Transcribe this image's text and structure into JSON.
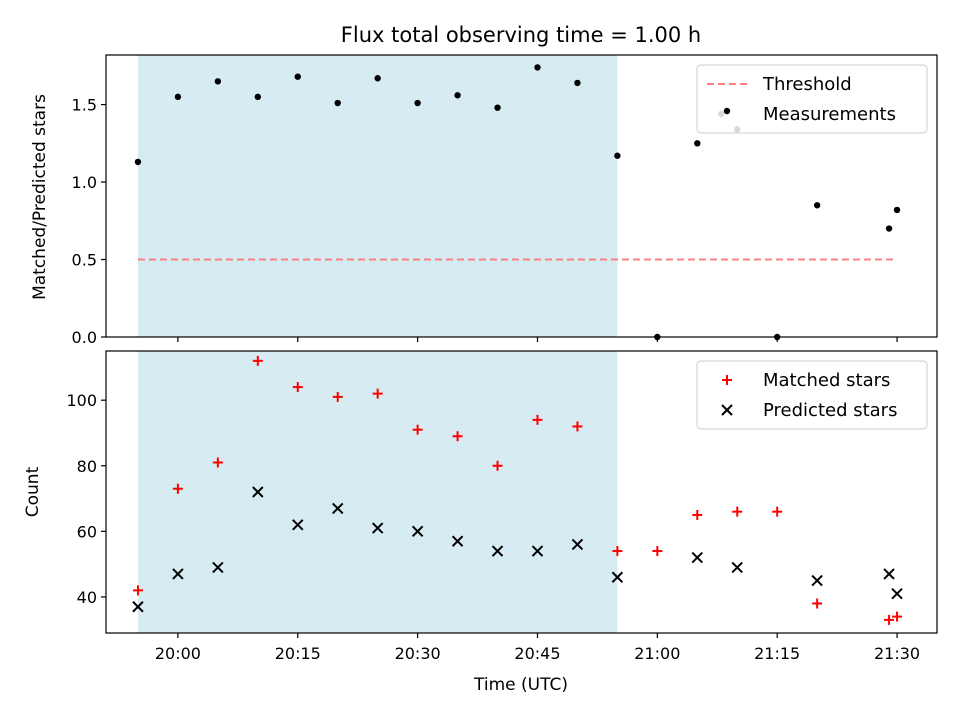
{
  "chart_data": [
    {
      "type": "scatter",
      "title": "Flux total observing time = 1.00 h",
      "ylabel": "Matched/Predicted stars",
      "xlabel": "",
      "ylim": [
        0,
        1.82
      ],
      "xlim": [
        "19:51",
        "21:35"
      ],
      "yticks": [
        0.0,
        0.5,
        1.0,
        1.5
      ],
      "ytick_labels": [
        "0.0",
        "0.5",
        "1.0",
        "1.5"
      ],
      "legend_position": "top-right",
      "highlight_span": {
        "start": "19:55",
        "end": "20:55",
        "color": "#add8e6"
      },
      "series": [
        {
          "name": "Threshold",
          "style": "dashed-line",
          "color": "#ff8080",
          "x": [
            "19:55",
            "21:30"
          ],
          "y": [
            0.5,
            0.5
          ]
        },
        {
          "name": "Measurements",
          "style": "dot",
          "color": "#000000",
          "x": [
            "19:55",
            "20:00",
            "20:05",
            "20:10",
            "20:15",
            "20:20",
            "20:25",
            "20:30",
            "20:35",
            "20:40",
            "20:45",
            "20:50",
            "20:55",
            "21:00",
            "21:05",
            "21:08",
            "21:10",
            "21:15",
            "21:20",
            "21:29",
            "21:30"
          ],
          "y": [
            1.13,
            1.55,
            1.65,
            1.55,
            1.68,
            1.51,
            1.67,
            1.51,
            1.56,
            1.48,
            1.74,
            1.64,
            1.17,
            0.0,
            1.25,
            1.44,
            1.34,
            0.0,
            0.85,
            0.7,
            0.82
          ]
        }
      ]
    },
    {
      "type": "scatter",
      "title": "",
      "ylabel": "Count",
      "xlabel": "Time (UTC)",
      "ylim": [
        29,
        115
      ],
      "xlim": [
        "19:51",
        "21:35"
      ],
      "yticks": [
        40,
        60,
        80,
        100
      ],
      "ytick_labels": [
        "40",
        "60",
        "80",
        "100"
      ],
      "xticks": [
        "20:00",
        "20:15",
        "20:30",
        "20:45",
        "21:00",
        "21:15",
        "21:30"
      ],
      "xtick_labels": [
        "20:00",
        "20:15",
        "20:30",
        "20:45",
        "21:00",
        "21:15",
        "21:30"
      ],
      "legend_position": "top-right",
      "highlight_span": {
        "start": "19:55",
        "end": "20:55",
        "color": "#add8e6"
      },
      "series": [
        {
          "name": "Matched stars",
          "style": "plus",
          "color": "#ff0000",
          "x": [
            "19:55",
            "20:00",
            "20:05",
            "20:10",
            "20:15",
            "20:20",
            "20:25",
            "20:30",
            "20:35",
            "20:40",
            "20:45",
            "20:50",
            "20:55",
            "21:00",
            "21:05",
            "21:10",
            "21:15",
            "21:20",
            "21:29",
            "21:30"
          ],
          "y": [
            42,
            73,
            81,
            112,
            104,
            101,
            102,
            91,
            89,
            80,
            94,
            92,
            54,
            54,
            65,
            66,
            66,
            38,
            33,
            34
          ]
        },
        {
          "name": "Predicted stars",
          "style": "x",
          "color": "#000000",
          "x": [
            "19:55",
            "20:00",
            "20:05",
            "20:10",
            "20:15",
            "20:20",
            "20:25",
            "20:30",
            "20:35",
            "20:40",
            "20:45",
            "20:50",
            "20:55",
            "21:05",
            "21:10",
            "21:20",
            "21:29",
            "21:30"
          ],
          "y": [
            37,
            47,
            49,
            72,
            62,
            67,
            61,
            60,
            57,
            54,
            54,
            56,
            46,
            52,
            49,
            45,
            47,
            41
          ]
        }
      ]
    }
  ]
}
